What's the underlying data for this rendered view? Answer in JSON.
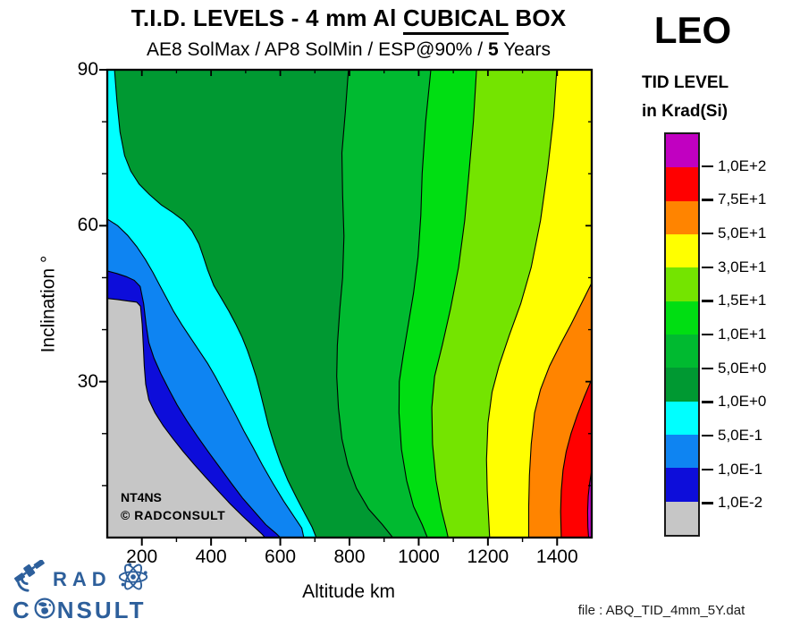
{
  "header": {
    "title_prefix": "T.I.D. LEVELS - 4 mm Al ",
    "title_underlined": "CUBICAL",
    "title_suffix": " BOX",
    "subtitle_prefix": "AE8 SolMax / AP8 SolMin / ESP@90% / ",
    "subtitle_bold": "5",
    "subtitle_suffix": " Years",
    "orbit_label": "LEO"
  },
  "legend": {
    "title_line1": "TID LEVEL",
    "title_line2": "in Krad(Si)"
  },
  "plot_inset": {
    "line1": "NT4NS",
    "line2": "©  RADCONSULT"
  },
  "axes": {
    "x_label": "Altitude km",
    "y_label": "Inclination °"
  },
  "footer": {
    "logo_word1": "RAD",
    "logo_word2_prefix": "C",
    "logo_word2_suffix": "NSULT",
    "logo_color": "#2D5F9B",
    "file_label": "file : ABQ_TID_4mm_5Y.dat"
  },
  "chart_data": {
    "type": "heatmap",
    "subtype": "filled_contour",
    "title": "T.I.D. LEVELS - 4 mm Al CUBICAL BOX",
    "xlabel": "Altitude km",
    "ylabel": "Inclination °",
    "xlim": [
      100,
      1500
    ],
    "ylim": [
      0,
      90
    ],
    "x_major_ticks": [
      200,
      400,
      600,
      800,
      1000,
      1200,
      1400
    ],
    "x_minor_ticks": [
      300,
      500,
      700,
      900,
      1100,
      1300
    ],
    "y_major_ticks": [
      30,
      60,
      90
    ],
    "y_minor_ticks": [
      10,
      20,
      40,
      50,
      70,
      80
    ],
    "grid": false,
    "legend_position": "right",
    "contour_levels_krad_si": [
      0.01,
      0.1,
      0.5,
      1,
      5,
      10,
      15,
      30,
      50,
      75,
      100
    ],
    "legend_bands": [
      {
        "color": "#C100C1",
        "range": "> 1,0E+2",
        "label_below": "1,0E+2"
      },
      {
        "color": "#FF0000",
        "range": "7,5E+1 – 1,0E+2",
        "label_below": "7,5E+1"
      },
      {
        "color": "#FF8400",
        "range": "5,0E+1 – 7,5E+1",
        "label_below": "5,0E+1"
      },
      {
        "color": "#FFFF00",
        "range": "3,0E+1 – 5,0E+1",
        "label_below": "3,0E+1"
      },
      {
        "color": "#74E400",
        "range": "1,5E+1 – 3,0E+1",
        "label_below": "1,5E+1"
      },
      {
        "color": "#00DE12",
        "range": "1,0E+1 – 1,5E+1",
        "label_below": "1,0E+1"
      },
      {
        "color": "#00BA30",
        "range": "5,0E+0 – 1,0E+1",
        "label_below": "5,0E+0"
      },
      {
        "color": "#009932",
        "range": "1,0E+0 – 5,0E+0",
        "label_below": "1,0E+0"
      },
      {
        "color": "#00FFFF",
        "range": "5,0E-1 – 1,0E+0",
        "label_below": "5,0E-1"
      },
      {
        "color": "#0E84F2",
        "range": "1,0E-1 – 5,0E-1",
        "label_below": "1,0E-1"
      },
      {
        "color": "#0D0DDA",
        "range": "1,0E-2 – 1,0E-1",
        "label_below": "1,0E-2"
      },
      {
        "color": "#C6C6C6",
        "range": "< 1,0E-2",
        "label_below": null
      }
    ],
    "base_band": {
      "range": "1,0E+0 – 5,0E+0",
      "color": "#009932"
    },
    "regions_left": [
      {
        "name": "band-5e-1-to-1e0",
        "color": "#00FFFF",
        "closure": "left-top",
        "boundary": [
          [
            121,
            90
          ],
          [
            128,
            84
          ],
          [
            137,
            78
          ],
          [
            150,
            73.5
          ],
          [
            168,
            70.5
          ],
          [
            192,
            68
          ],
          [
            222,
            66
          ],
          [
            256,
            64
          ],
          [
            290,
            62.5
          ],
          [
            320,
            61
          ],
          [
            345,
            59
          ],
          [
            365,
            56.5
          ],
          [
            378,
            54
          ],
          [
            390,
            51.5
          ],
          [
            408,
            48.5
          ],
          [
            430,
            46
          ],
          [
            452,
            43.5
          ],
          [
            472,
            41
          ],
          [
            490,
            38.5
          ],
          [
            505,
            36
          ],
          [
            518,
            33.5
          ],
          [
            530,
            31
          ],
          [
            542,
            28
          ],
          [
            553,
            25
          ],
          [
            566,
            21.5
          ],
          [
            582,
            18
          ],
          [
            600,
            14.5
          ],
          [
            622,
            11
          ],
          [
            648,
            7.5
          ],
          [
            672,
            4.5
          ],
          [
            692,
            2
          ],
          [
            704,
            0
          ]
        ]
      },
      {
        "name": "band-1e-1-to-5e-1",
        "color": "#0E84F2",
        "closure": "left",
        "boundary": [
          [
            100,
            61.3
          ],
          [
            130,
            60
          ],
          [
            158,
            58.2
          ],
          [
            185,
            56
          ],
          [
            210,
            53.5
          ],
          [
            232,
            51
          ],
          [
            252,
            48.5
          ],
          [
            272,
            46
          ],
          [
            292,
            43.5
          ],
          [
            315,
            41
          ],
          [
            340,
            38.5
          ],
          [
            365,
            36
          ],
          [
            390,
            33.5
          ],
          [
            412,
            31
          ],
          [
            432,
            28.5
          ],
          [
            452,
            26
          ],
          [
            472,
            23.5
          ],
          [
            495,
            20.5
          ],
          [
            520,
            17.5
          ],
          [
            548,
            14
          ],
          [
            578,
            10.5
          ],
          [
            610,
            7
          ],
          [
            640,
            4
          ],
          [
            662,
            1.8
          ],
          [
            668,
            0
          ]
        ]
      },
      {
        "name": "band-1e-2-to-1e-1",
        "color": "#0D0DDA",
        "closure": "left",
        "boundary": [
          [
            100,
            51.3
          ],
          [
            128,
            50.8
          ],
          [
            155,
            50.2
          ],
          [
            178,
            49.5
          ],
          [
            195,
            48.3
          ],
          [
            205,
            45
          ],
          [
            212,
            41
          ],
          [
            220,
            37.5
          ],
          [
            235,
            34.5
          ],
          [
            255,
            31.5
          ],
          [
            278,
            28.5
          ],
          [
            302,
            25.5
          ],
          [
            330,
            22.5
          ],
          [
            360,
            19.5
          ],
          [
            392,
            16.5
          ],
          [
            425,
            13.5
          ],
          [
            458,
            10.5
          ],
          [
            492,
            7.5
          ],
          [
            525,
            5
          ],
          [
            558,
            2.5
          ],
          [
            588,
            0.8
          ],
          [
            600,
            0
          ]
        ]
      },
      {
        "name": "band-below-1e-2",
        "color": "#C6C6C6",
        "closure": "left",
        "boundary": [
          [
            100,
            46
          ],
          [
            130,
            45.8
          ],
          [
            160,
            45.5
          ],
          [
            185,
            45.3
          ],
          [
            196,
            44.5
          ],
          [
            201,
            41
          ],
          [
            204,
            37
          ],
          [
            207,
            33
          ],
          [
            211,
            29.5
          ],
          [
            220,
            26.5
          ],
          [
            238,
            24
          ],
          [
            262,
            21.5
          ],
          [
            290,
            19
          ],
          [
            320,
            16.5
          ],
          [
            352,
            14
          ],
          [
            386,
            11.5
          ],
          [
            420,
            9
          ],
          [
            455,
            6.5
          ],
          [
            490,
            4.2
          ],
          [
            522,
            2.2
          ],
          [
            548,
            0.6
          ],
          [
            556,
            0
          ]
        ]
      }
    ],
    "regions_right": [
      {
        "name": "band-5e0-to-1e1",
        "color": "#00BA30",
        "closure": "right-top",
        "boundary": [
          [
            797,
            90
          ],
          [
            788,
            82
          ],
          [
            778,
            74
          ],
          [
            780,
            66
          ],
          [
            784,
            58
          ],
          [
            780,
            50
          ],
          [
            772,
            44
          ],
          [
            765,
            37
          ],
          [
            763,
            31
          ],
          [
            768,
            25
          ],
          [
            778,
            19
          ],
          [
            795,
            14
          ],
          [
            820,
            9.5
          ],
          [
            855,
            5.5
          ],
          [
            895,
            2.5
          ],
          [
            925,
            0
          ]
        ]
      },
      {
        "name": "band-1e1-to-1p5e1",
        "color": "#00DE12",
        "closure": "right-top",
        "boundary": [
          [
            1035,
            90
          ],
          [
            1020,
            80
          ],
          [
            1010,
            70
          ],
          [
            1006,
            62
          ],
          [
            998,
            54
          ],
          [
            985,
            47
          ],
          [
            970,
            41
          ],
          [
            955,
            35
          ],
          [
            944,
            30
          ],
          [
            943,
            24
          ],
          [
            950,
            17
          ],
          [
            965,
            11
          ],
          [
            985,
            6
          ],
          [
            1010,
            2.5
          ],
          [
            1025,
            0
          ]
        ]
      },
      {
        "name": "band-1p5e1-to-3e1",
        "color": "#74E400",
        "closure": "right-top",
        "boundary": [
          [
            1167,
            90
          ],
          [
            1158,
            80
          ],
          [
            1145,
            70
          ],
          [
            1133,
            61
          ],
          [
            1115,
            52
          ],
          [
            1092,
            44
          ],
          [
            1068,
            37
          ],
          [
            1046,
            31
          ],
          [
            1038,
            25
          ],
          [
            1040,
            18
          ],
          [
            1050,
            11
          ],
          [
            1065,
            5.5
          ],
          [
            1080,
            1.5
          ],
          [
            1085,
            0
          ]
        ]
      },
      {
        "name": "band-3e1-to-5e1",
        "color": "#FFFF00",
        "closure": "right-top",
        "boundary": [
          [
            1399,
            90
          ],
          [
            1390,
            81
          ],
          [
            1373,
            71
          ],
          [
            1352,
            61
          ],
          [
            1325,
            52
          ],
          [
            1295,
            45
          ],
          [
            1262,
            39
          ],
          [
            1232,
            33
          ],
          [
            1212,
            28
          ],
          [
            1200,
            22
          ],
          [
            1196,
            15
          ],
          [
            1198,
            9
          ],
          [
            1202,
            4
          ],
          [
            1205,
            0
          ]
        ]
      },
      {
        "name": "band-5e1-to-7p5e1",
        "color": "#FF8400",
        "closure": "right",
        "boundary": [
          [
            1500,
            49
          ],
          [
            1470,
            45
          ],
          [
            1440,
            41
          ],
          [
            1408,
            37
          ],
          [
            1378,
            33
          ],
          [
            1352,
            28.5
          ],
          [
            1335,
            24
          ],
          [
            1325,
            18
          ],
          [
            1320,
            12
          ],
          [
            1318,
            6
          ],
          [
            1318,
            0
          ]
        ]
      },
      {
        "name": "band-7p5e1-to-1e2",
        "color": "#FF0000",
        "closure": "right",
        "boundary": [
          [
            1500,
            30.5
          ],
          [
            1478,
            27
          ],
          [
            1458,
            23.5
          ],
          [
            1440,
            20
          ],
          [
            1426,
            16.5
          ],
          [
            1417,
            13
          ],
          [
            1412,
            9
          ],
          [
            1410,
            5
          ],
          [
            1412,
            0
          ]
        ]
      },
      {
        "name": "band-above-1e2",
        "color": "#C100C1",
        "closure": "right",
        "boundary": [
          [
            1500,
            13
          ],
          [
            1494,
            10.5
          ],
          [
            1490,
            8
          ],
          [
            1488,
            5
          ],
          [
            1489,
            2
          ],
          [
            1491,
            0
          ]
        ]
      }
    ]
  }
}
